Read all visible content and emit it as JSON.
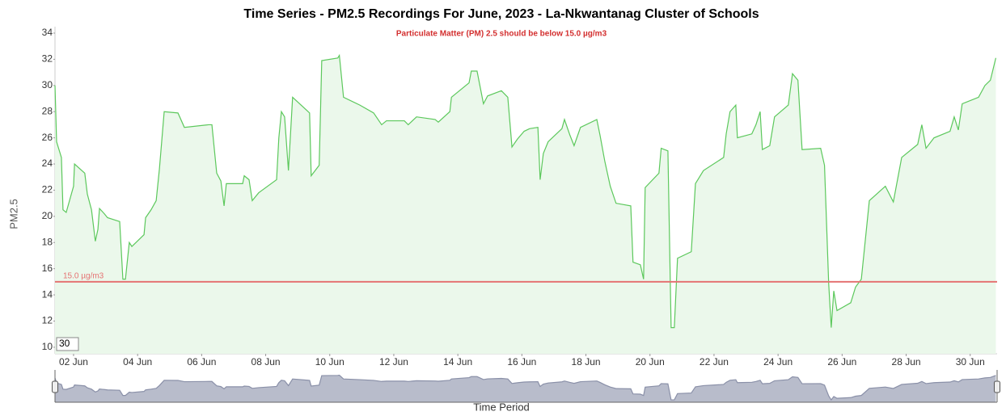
{
  "chart_data": {
    "type": "area",
    "title": "Time Series - PM2.5 Recordings For June, 2023 - La-Nkwantanag Cluster of Schools",
    "subtitle": "Particulate Matter (PM) 2.5 should be below 15.0 µg/m3",
    "x_label": "Time Period",
    "y_label": "PM2.5",
    "series": [
      {
        "color": "#5cc85c",
        "fill": "#ebf8eb",
        "x": [
          1.42,
          1.47,
          1.62,
          1.67,
          1.77,
          2.0,
          2.03,
          2.35,
          2.43,
          2.56,
          2.68,
          2.76,
          2.81,
          2.96,
          3.06,
          3.44,
          3.54,
          3.62,
          3.74,
          3.82,
          4.2,
          4.25,
          4.42,
          4.58,
          4.68,
          4.83,
          5.26,
          5.46,
          6.22,
          6.32,
          6.47,
          6.6,
          6.7,
          6.77,
          7.28,
          7.33,
          7.48,
          7.58,
          7.78,
          8.34,
          8.41,
          8.49,
          8.59,
          8.71,
          8.84,
          9.37,
          9.42,
          9.67,
          9.75,
          10.25,
          10.3,
          10.43,
          10.94,
          11.37,
          11.62,
          11.77,
          12.33,
          12.45,
          12.71,
          13.29,
          13.39,
          13.75,
          13.8,
          14.35,
          14.42,
          14.6,
          14.8,
          14.93,
          15.36,
          15.56,
          15.69,
          15.86,
          16.07,
          16.24,
          16.5,
          16.57,
          16.67,
          16.82,
          17.25,
          17.33,
          17.5,
          17.63,
          17.83,
          18.34,
          18.44,
          18.59,
          18.76,
          18.94,
          19.4,
          19.47,
          19.7,
          19.8,
          19.85,
          20.28,
          20.35,
          20.56,
          20.66,
          20.76,
          20.86,
          21.29,
          21.42,
          21.67,
          22.3,
          22.38,
          22.5,
          22.68,
          22.73,
          23.18,
          23.31,
          23.44,
          23.51,
          23.74,
          23.89,
          24.32,
          24.45,
          24.62,
          24.75,
          25.33,
          25.45,
          25.58,
          25.66,
          25.74,
          25.84,
          26.27,
          26.42,
          26.6,
          26.85,
          27.35,
          27.6,
          27.86,
          28.36,
          28.49,
          28.62,
          28.87,
          29.37,
          29.5,
          29.63,
          29.75,
          30.26,
          30.46,
          30.63,
          30.8
        ],
        "values": [
          30,
          25.7,
          24.5,
          20.5,
          20.3,
          22.3,
          24,
          23.3,
          21.7,
          20.5,
          18.1,
          19,
          20.6,
          20.2,
          19.9,
          19.6,
          15.2,
          15.2,
          18,
          17.7,
          18.6,
          19.9,
          20.5,
          21.2,
          23.6,
          28,
          27.9,
          26.8,
          27,
          27,
          23.3,
          22.7,
          20.8,
          22.5,
          22.5,
          23.1,
          22.8,
          21.2,
          21.8,
          22.8,
          26,
          28,
          27.6,
          23.5,
          29.1,
          27.9,
          23.1,
          23.9,
          31.9,
          32.1,
          32.3,
          29.1,
          28.5,
          27.9,
          27,
          27.3,
          27.3,
          27,
          27.6,
          27.4,
          27.2,
          28,
          29.1,
          30.2,
          31.1,
          31.1,
          28.6,
          29.2,
          29.6,
          29.1,
          25.3,
          25.9,
          26.5,
          26.7,
          26.8,
          22.8,
          24.8,
          25.7,
          26.7,
          27.4,
          26.2,
          25.4,
          26.8,
          27.4,
          26.2,
          24.2,
          22.3,
          21,
          20.8,
          16.5,
          16.3,
          15.2,
          22.2,
          23.3,
          25.2,
          25,
          11.5,
          11.5,
          16.8,
          17.3,
          22.5,
          23.5,
          24.5,
          26.3,
          28,
          28.5,
          26,
          26.3,
          27,
          28,
          25.1,
          25.4,
          27.6,
          28.5,
          30.9,
          30.4,
          25.1,
          25.2,
          23.9,
          14.9,
          11.5,
          14.3,
          12.8,
          13.4,
          14.6,
          15.2,
          21.2,
          22.3,
          21.1,
          24.5,
          25.5,
          27,
          25.2,
          26,
          26.5,
          27.6,
          26.6,
          28.6,
          29.1,
          30,
          30.4,
          32.1
        ]
      }
    ],
    "threshold": {
      "value": 15,
      "label": "15.0 µg/m3",
      "color": "#e57373"
    },
    "xlim": [
      1.42,
      30.84
    ],
    "xticks": [
      {
        "value": 2,
        "label": "02 Jun"
      },
      {
        "value": 4,
        "label": "04 Jun"
      },
      {
        "value": 6,
        "label": "06 Jun"
      },
      {
        "value": 8,
        "label": "08 Jun"
      },
      {
        "value": 10,
        "label": "10 Jun"
      },
      {
        "value": 12,
        "label": "12 Jun"
      },
      {
        "value": 14,
        "label": "14 Jun"
      },
      {
        "value": 16,
        "label": "16 Jun"
      },
      {
        "value": 18,
        "label": "18 Jun"
      },
      {
        "value": 20,
        "label": "20 Jun"
      },
      {
        "value": 22,
        "label": "22 Jun"
      },
      {
        "value": 24,
        "label": "24 Jun"
      },
      {
        "value": 26,
        "label": "26 Jun"
      },
      {
        "value": 28,
        "label": "28 Jun"
      },
      {
        "value": 30,
        "label": "30 Jun"
      }
    ],
    "ylim": [
      9.5,
      34
    ],
    "yticks": [
      10,
      12,
      14,
      16,
      18,
      20,
      22,
      24,
      26,
      28,
      30,
      32,
      34
    ]
  },
  "range_input": "30"
}
